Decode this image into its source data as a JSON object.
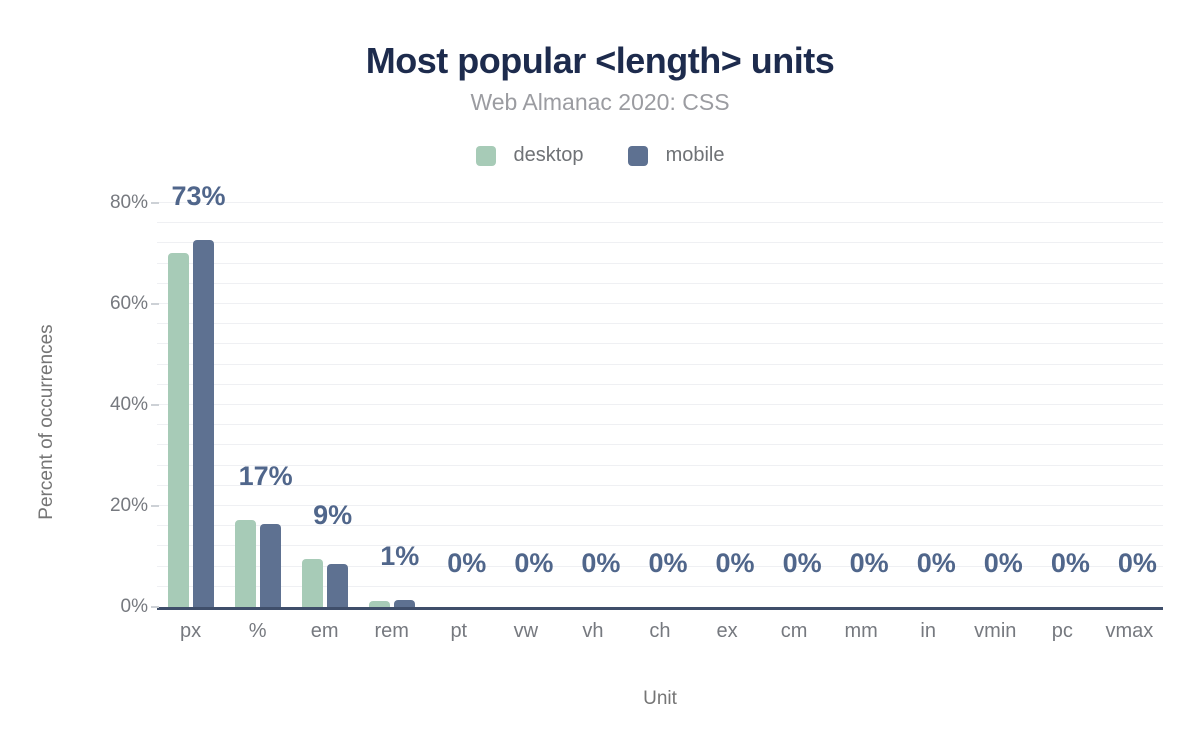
{
  "chart_data": {
    "type": "bar",
    "title": "Most popular <length> units",
    "subtitle": "Web Almanac 2020: CSS",
    "xlabel": "Unit",
    "ylabel": "Percent of occurrences",
    "categories": [
      "px",
      "%",
      "em",
      "rem",
      "pt",
      "vw",
      "vh",
      "ch",
      "ex",
      "cm",
      "mm",
      "in",
      "vmin",
      "pc",
      "vmax"
    ],
    "series": [
      {
        "name": "desktop",
        "color": "#a7cbb7",
        "values": [
          70.2,
          17.3,
          9.6,
          1.2,
          0,
          0,
          0,
          0,
          0,
          0,
          0,
          0,
          0,
          0,
          0
        ]
      },
      {
        "name": "mobile",
        "color": "#5e7191",
        "values": [
          72.6,
          16.5,
          8.5,
          1.3,
          0,
          0,
          0,
          0,
          0,
          0,
          0,
          0,
          0,
          0,
          0
        ]
      }
    ],
    "value_labels": [
      "73%",
      "17%",
      "9%",
      "1%",
      "0%",
      "0%",
      "0%",
      "0%",
      "0%",
      "0%",
      "0%",
      "0%",
      "0%",
      "0%",
      "0%"
    ],
    "y_ticks": [
      {
        "label": "0%",
        "value": 0
      },
      {
        "label": "20%",
        "value": 20
      },
      {
        "label": "40%",
        "value": 40
      },
      {
        "label": "60%",
        "value": 60
      },
      {
        "label": "80%",
        "value": 80
      }
    ],
    "ylim": [
      0,
      80
    ],
    "minor_grid_step": 4,
    "grid": true,
    "legend_position": "top"
  },
  "colors": {
    "title": "#1d2b4d",
    "subtitle": "#9b9ca1",
    "legend_text": "#6f7276",
    "axis_title": "#757575",
    "tick_label": "#76797f",
    "tick_mark": "#cdd1d6",
    "gridline": "#eff0f3",
    "axis_line": "#3f4e6a",
    "value_label": "#50668b",
    "background": "#ffffff"
  }
}
